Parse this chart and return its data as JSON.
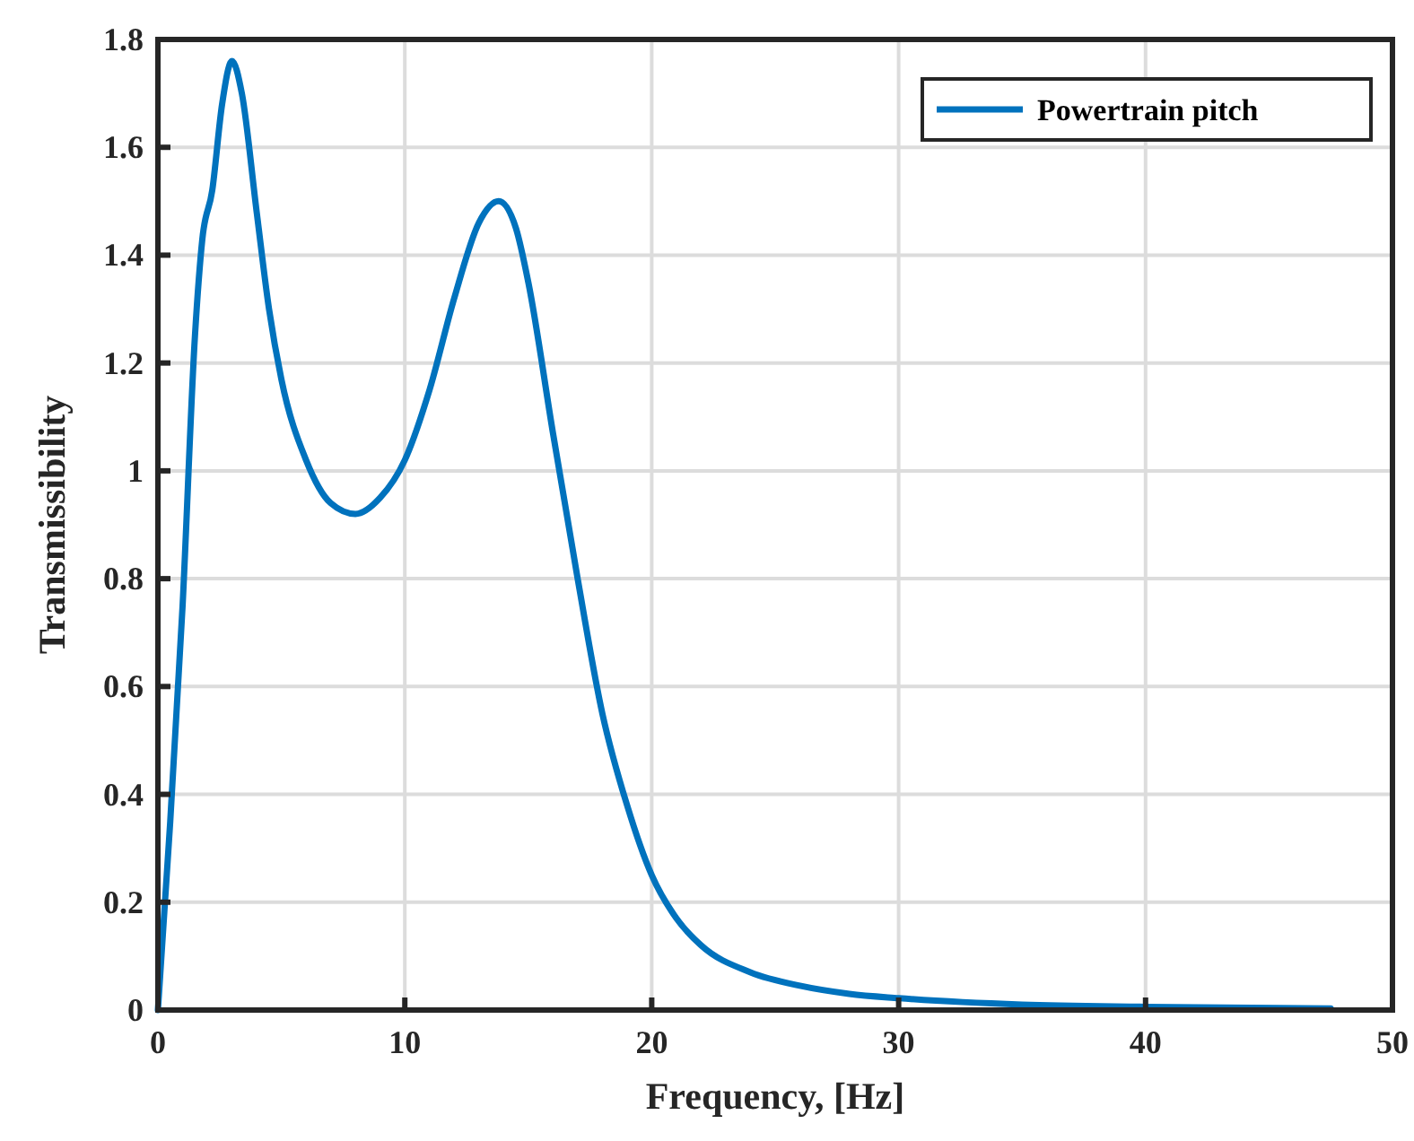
{
  "chart_data": {
    "type": "line",
    "xlabel": "Frequency, [Hz]",
    "ylabel": "Transmissibility",
    "xlim": [
      0,
      50
    ],
    "ylim": [
      0,
      1.8
    ],
    "xticks": [
      0,
      10,
      20,
      30,
      40,
      50
    ],
    "yticks": [
      0,
      0.2,
      0.4,
      0.6,
      0.8,
      1,
      1.2,
      1.4,
      1.6,
      1.8
    ],
    "grid": true,
    "legend": "top right",
    "series": [
      {
        "name": "Powertrain pitch",
        "color": "#0072bd",
        "x": [
          0,
          0.5,
          1,
          1.5,
          1.8,
          2.2,
          2.6,
          3,
          3.4,
          4,
          4.5,
          5,
          6,
          7,
          8,
          9,
          10,
          11,
          12,
          13,
          13.8,
          14.5,
          15,
          16,
          17,
          18,
          19,
          20,
          21,
          22,
          24,
          26,
          28,
          30,
          35,
          40,
          47.5
        ],
        "values": [
          0,
          0.35,
          0.75,
          1.25,
          1.43,
          1.52,
          1.68,
          1.76,
          1.7,
          1.48,
          1.3,
          1.17,
          1.02,
          0.94,
          0.92,
          0.95,
          1.02,
          1.15,
          1.32,
          1.46,
          1.5,
          1.45,
          1.35,
          1.07,
          0.8,
          0.55,
          0.38,
          0.25,
          0.17,
          0.12,
          0.07,
          0.045,
          0.03,
          0.022,
          0.01,
          0.006,
          0.003
        ]
      }
    ]
  }
}
